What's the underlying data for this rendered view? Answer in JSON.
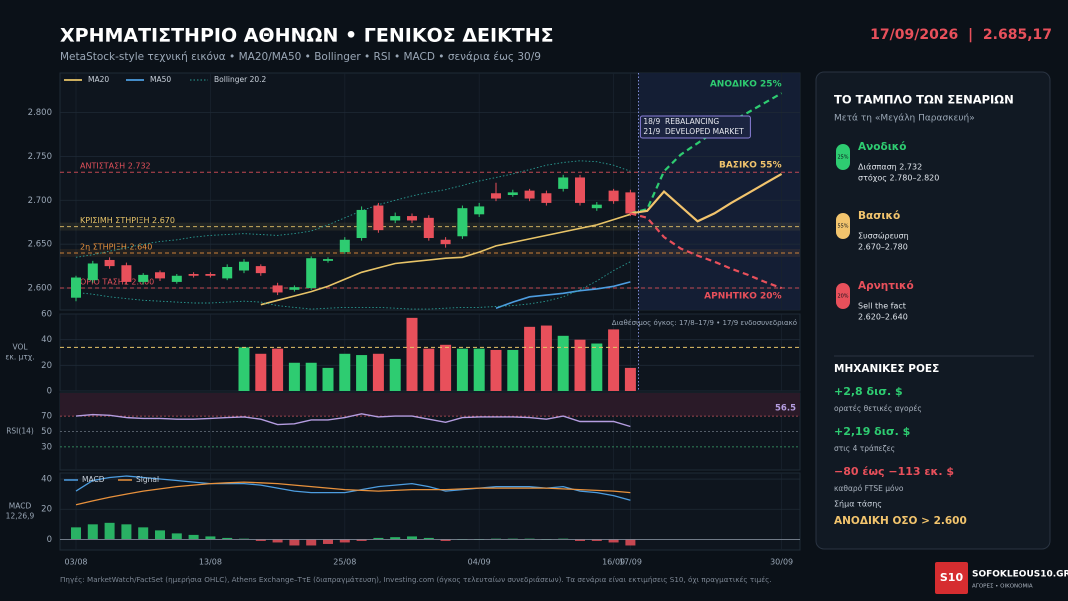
{
  "header": {
    "title": "ΧΡΗΜΑΤΙΣΤΗΡΙΟ ΑΘΗΝΩΝ • ΓΕΝΙΚΟΣ ΔΕΙΚΤΗΣ",
    "subtitle": "MetaStock-style τεχνική εικόνα • MA20/MA50 • Bollinger • RSI • MACD • σενάρια έως 30/9",
    "date_value": "17/09/2026  |  2.685,17"
  },
  "chart_data": [
    {
      "type": "candlestick",
      "categories": [
        "03/08",
        null,
        null,
        null,
        null,
        null,
        null,
        null,
        "13/08",
        null,
        null,
        null,
        null,
        null,
        null,
        null,
        "25/08",
        null,
        null,
        null,
        null,
        null,
        null,
        null,
        "04/09",
        null,
        null,
        null,
        null,
        null,
        null,
        null,
        "16/09",
        "17/09",
        null,
        null,
        null,
        null,
        null,
        null,
        null,
        null,
        "30/09"
      ],
      "open": [
        2589,
        2609,
        2632,
        2626,
        2607,
        2618,
        2607,
        2616,
        2616,
        2611,
        2620,
        2625,
        2603,
        2598,
        2600,
        2631,
        2641,
        2657,
        2694,
        2677,
        2682,
        2680,
        2655,
        2659,
        2684,
        2708,
        2706,
        2711,
        2708,
        2713,
        2726,
        2691,
        2711,
        2709,
        null,
        null,
        null,
        null,
        null,
        null,
        null,
        null,
        null
      ],
      "high": [
        2614,
        2631,
        2635,
        2629,
        2617,
        2620,
        2616,
        2618,
        2618,
        2627,
        2633,
        2627,
        2606,
        2603,
        2636,
        2635,
        2658,
        2693,
        2697,
        2686,
        2685,
        2683,
        2658,
        2694,
        2697,
        2720,
        2712,
        2713,
        2711,
        2729,
        2729,
        2698,
        2713,
        2712,
        null,
        null,
        null,
        null,
        null,
        null,
        null,
        null,
        null
      ],
      "low": [
        2585,
        2606,
        2622,
        2604,
        2604,
        2608,
        2605,
        2612,
        2612,
        2609,
        2617,
        2614,
        2592,
        2596,
        2598,
        2629,
        2639,
        2654,
        2663,
        2674,
        2674,
        2654,
        2646,
        2656,
        2681,
        2699,
        2704,
        2699,
        2694,
        2710,
        2694,
        2688,
        2696,
        2682,
        null,
        null,
        null,
        null,
        null,
        null,
        null,
        null,
        null
      ],
      "close": [
        2612,
        2628,
        2625,
        2607,
        2615,
        2611,
        2614,
        2614,
        2614,
        2624,
        2630,
        2617,
        2595,
        2601,
        2634,
        2633,
        2655,
        2689,
        2666,
        2682,
        2677,
        2657,
        2650,
        2691,
        2693,
        2702,
        2709,
        2702,
        2697,
        2726,
        2697,
        2695,
        2699,
        2685,
        null,
        null,
        null,
        null,
        null,
        null,
        null,
        null,
        null
      ],
      "up_color": "#2ecc71",
      "down_color": "#e8505b",
      "series": [
        {
          "name": "MA20",
          "color": "#e8c468",
          "values": [
            null,
            null,
            null,
            null,
            null,
            null,
            null,
            null,
            null,
            null,
            null,
            2581,
            2586,
            2591,
            2596,
            2602,
            2610,
            2618,
            2623,
            2628,
            2630,
            2632,
            2634,
            2635,
            2641,
            2648,
            2652,
            2656,
            2660,
            2664,
            2668,
            2672,
            2678,
            2684,
            null,
            null,
            null,
            null,
            null,
            null,
            null,
            null,
            null
          ]
        },
        {
          "name": "MA50",
          "color": "#4d9de0",
          "values": [
            null,
            null,
            null,
            null,
            null,
            null,
            null,
            null,
            null,
            null,
            null,
            null,
            null,
            null,
            null,
            null,
            null,
            null,
            null,
            null,
            null,
            null,
            null,
            null,
            null,
            2577,
            2584,
            2590,
            2592,
            2594,
            2597,
            2599,
            2602,
            2607,
            null,
            null,
            null,
            null,
            null,
            null,
            null,
            null,
            null
          ]
        },
        {
          "name": "Bollinger 20.2",
          "color": "#2a9d94",
          "upper": [
            2635,
            2638,
            2642,
            2646,
            2650,
            2653,
            2655,
            2658,
            2660,
            2661,
            2662,
            2661,
            2660,
            2662,
            2665,
            2672,
            2680,
            2688,
            2695,
            2700,
            2705,
            2709,
            2712,
            2717,
            2722,
            2726,
            2730,
            2735,
            2740,
            2743,
            2745,
            2744,
            2740,
            2733,
            null,
            null,
            null,
            null,
            null,
            null,
            null,
            null,
            null
          ],
          "lower": [
            2595,
            2593,
            2590,
            2588,
            2586,
            2585,
            2584,
            2583,
            2583,
            2584,
            2585,
            2584,
            2580,
            2578,
            2576,
            2577,
            2578,
            2578,
            2578,
            2577,
            2576,
            2576,
            2577,
            2578,
            2578,
            2579,
            2580,
            2582,
            2585,
            2590,
            2598,
            2608,
            2620,
            2630,
            null,
            null,
            null,
            null,
            null,
            null,
            null,
            null,
            null
          ]
        }
      ],
      "scenarios": [
        {
          "name": "ΑΝΟΔΙΚΟ 25%",
          "color": "#2ecc71",
          "dashed": true,
          "values": [
            null,
            null,
            null,
            null,
            null,
            null,
            null,
            null,
            null,
            null,
            null,
            null,
            null,
            null,
            null,
            null,
            null,
            null,
            null,
            null,
            null,
            null,
            null,
            null,
            null,
            null,
            null,
            null,
            null,
            null,
            null,
            null,
            null,
            2685,
            2690,
            2733,
            2752,
            2765,
            2778,
            2790,
            2800,
            2811,
            2822
          ]
        },
        {
          "name": "ΒΑΣΙΚΟ 55%",
          "color": "#f2c46d",
          "dashed": false,
          "values": [
            null,
            null,
            null,
            null,
            null,
            null,
            null,
            null,
            null,
            null,
            null,
            null,
            null,
            null,
            null,
            null,
            null,
            null,
            null,
            null,
            null,
            null,
            null,
            null,
            null,
            null,
            null,
            null,
            null,
            null,
            null,
            null,
            null,
            2685,
            2688,
            2710,
            2693,
            2676,
            2685,
            2697,
            2708,
            2719,
            2730
          ]
        },
        {
          "name": "ΑΡΝΗΤΙΚΟ 20%",
          "color": "#e8505b",
          "dashed": true,
          "values": [
            null,
            null,
            null,
            null,
            null,
            null,
            null,
            null,
            null,
            null,
            null,
            null,
            null,
            null,
            null,
            null,
            null,
            null,
            null,
            null,
            null,
            null,
            null,
            null,
            null,
            null,
            null,
            null,
            null,
            null,
            null,
            null,
            null,
            2685,
            2680,
            2658,
            2645,
            2637,
            2630,
            2622,
            2615,
            2607,
            2600
          ]
        }
      ],
      "levels": [
        {
          "label": "ΑΝΤΙΣΤΑΣΗ 2.732",
          "value": 2732,
          "color": "#e0505a",
          "band": false
        },
        {
          "label": "ΚΡΙΣΙΜΗ ΣΤΗΡΙΞΗ 2.670",
          "value": 2670,
          "color": "#e8c468",
          "band": true
        },
        {
          "label": "2η ΣΤΗΡΙΞΗ 2.640",
          "value": 2640,
          "color": "#e8913c",
          "band": true
        },
        {
          "label": "ΟΡΙΟ ΤΑΣΗΣ 2.600",
          "value": 2600,
          "color": "#e0505a",
          "band": false
        }
      ],
      "events": [
        "18/9  REBALANCING",
        "21/9  DEVELOPED MARKET"
      ],
      "ylim": [
        2575,
        2845
      ],
      "yticks": [
        {
          "value": 2600,
          "label": "2.600"
        },
        {
          "value": 2650,
          "label": "2.650"
        },
        {
          "value": 2700,
          "label": "2.700"
        },
        {
          "value": 2750,
          "label": "2.750"
        },
        {
          "value": 2800,
          "label": "2.800"
        }
      ],
      "grid": true
    },
    {
      "type": "bar",
      "ylabel": [
        "VOL",
        "εκ. μτχ."
      ],
      "note": "Διαθέσιμος όγκος: 17/8–17/9 • 17/9 ενδοσυνεδριακό",
      "values": [
        null,
        null,
        null,
        null,
        null,
        null,
        null,
        null,
        null,
        null,
        34,
        29,
        33,
        22,
        22,
        18,
        29,
        28,
        29,
        25,
        57,
        33,
        36,
        33,
        33,
        32,
        32,
        50,
        51,
        43,
        40,
        37,
        48,
        18,
        null,
        null,
        null,
        null,
        null,
        null,
        null,
        null,
        null
      ],
      "average": 34,
      "average_color": "#e8c468",
      "ylim": [
        0,
        60
      ],
      "yticks": [
        0,
        20,
        40,
        60
      ],
      "grid": true
    },
    {
      "type": "line",
      "ylabel": [
        "RSI(14)"
      ],
      "color": "#b59de0",
      "values": [
        70,
        72,
        71,
        68,
        67,
        67,
        66,
        66,
        67,
        68,
        69,
        66,
        59,
        60,
        65,
        65,
        68,
        73,
        69,
        70,
        70,
        66,
        62,
        68,
        69,
        69,
        69,
        68,
        66,
        70,
        63,
        63,
        63,
        56.5,
        null,
        null,
        null,
        null,
        null,
        null,
        null,
        null,
        null
      ],
      "ylim": [
        0,
        100
      ],
      "yticks": [
        30,
        50,
        70
      ],
      "grid_colors": [
        "#3aa36a",
        "#6b7480",
        "#c4535b"
      ],
      "band": {
        "from": 70,
        "to": 100,
        "color": "#2a1a28"
      }
    },
    {
      "type": "macd",
      "ylabel": [
        "MACD",
        "12,26,9"
      ],
      "series": [
        {
          "name": "MACD",
          "color": "#4d9de0",
          "values": [
            32,
            39,
            41,
            42,
            41,
            40,
            39,
            38,
            37,
            37,
            37,
            36,
            34,
            32,
            31,
            31,
            31,
            33,
            35,
            36,
            37,
            35,
            32,
            33,
            34,
            35,
            35,
            35,
            34,
            35,
            32,
            31,
            29,
            26,
            null,
            null,
            null,
            null,
            null,
            null,
            null,
            null,
            null
          ]
        },
        {
          "name": "Signal",
          "color": "#e8913c",
          "values": [
            23,
            25.5,
            28,
            30,
            32,
            33.5,
            35,
            36,
            37,
            37.5,
            38,
            37.5,
            37,
            36,
            35,
            34,
            33,
            32.5,
            32,
            32.5,
            33,
            33,
            33,
            33.5,
            34,
            34,
            34,
            34,
            34,
            33.5,
            33,
            32.5,
            32,
            31,
            null,
            null,
            null,
            null,
            null,
            null,
            null,
            null,
            null
          ]
        }
      ],
      "histogram": {
        "up_color": "#2ecc71",
        "down_color": "#e8505b",
        "values": [
          8,
          10,
          11,
          10,
          8,
          6,
          4,
          3,
          2,
          1,
          0.5,
          -1,
          -2,
          -4,
          -4,
          -3,
          -2,
          -1,
          1,
          1.5,
          2,
          1,
          -1,
          0,
          0,
          0.5,
          0.5,
          0.5,
          0,
          0.5,
          -1,
          -1,
          -2,
          -4,
          null,
          null,
          null,
          null,
          null,
          null,
          null,
          null,
          null
        ]
      },
      "ylim": [
        -7,
        44
      ],
      "yticks": [
        0,
        20,
        40
      ],
      "grid": true
    }
  ],
  "panel": {
    "title": "ΤΟ ΤΑΜΠΛΟ ΤΩΝ ΣΕΝΑΡΙΩΝ",
    "subtitle": "Μετά τη «Μεγάλη Παρασκευή»",
    "scenarios": [
      {
        "badge": "25%",
        "name": "Ανοδικό",
        "lines": [
          "Διάσπαση 2.732",
          "στόχος 2.780–2.820"
        ],
        "color": "#2ecc71"
      },
      {
        "badge": "55%",
        "name": "Βασικό",
        "lines": [
          "Συσσώρευση",
          "2.670–2.780"
        ],
        "color": "#f2c46d"
      },
      {
        "badge": "20%",
        "name": "Αρνητικό",
        "lines": [
          "Sell the fact",
          "2.620–2.640"
        ],
        "color": "#e8505b"
      }
    ],
    "flows_title": "ΜΗΧΑΝΙΚΕΣ ΡΟΕΣ",
    "flows": [
      {
        "value": "+2,8 δισ. $",
        "note": "ορατές θετικές αγορές",
        "color": "#2ecc71"
      },
      {
        "value": "+2,19 δισ. $",
        "note": "στις 4 τράπεζες",
        "color": "#2ecc71"
      },
      {
        "value": "−80 έως −113 εκ. $",
        "note": "καθαρό FTSE μόνο",
        "color": "#e8505b"
      }
    ],
    "signal_label": "Σήμα τάσης",
    "signal": "ΑΝΟΔΙΚΗ ΟΣΟ > 2.600"
  },
  "footer": {
    "source": "Πηγές: MarketWatch/FactSet (ημερήσια OHLC), Athens Exchange–ΤτΕ (διαπραγμάτευση), Investing.com (όγκος τελευταίων συνεδριάσεων). Τα σενάρια είναι εκτιμήσεις S10, όχι πραγματικές τιμές.",
    "logo": "S10",
    "site": "SOFOKLEOUS10.GR",
    "tagline": "ΑΓΟΡΕΣ • ΟΙΚΟΝΟΜΙΑ"
  }
}
